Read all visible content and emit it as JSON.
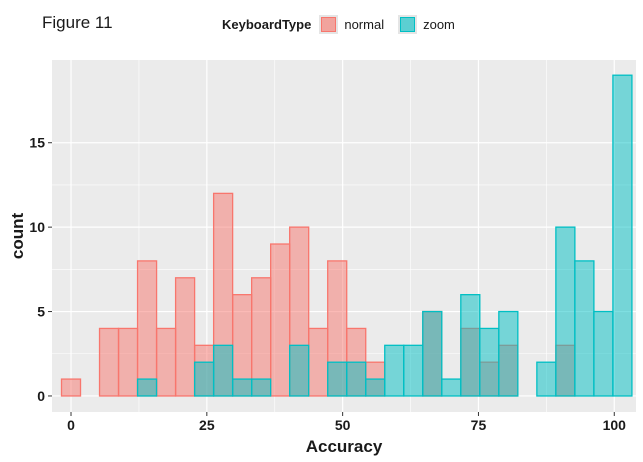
{
  "figure_label": "Figure 11",
  "legend": {
    "title": "KeyboardType",
    "entries": [
      {
        "label": "normal",
        "fill": "#F8766D",
        "stroke": "#F8766D"
      },
      {
        "label": "zoom",
        "fill": "#00BFC4",
        "stroke": "#00BFC4"
      }
    ]
  },
  "chart_data": {
    "type": "bar",
    "subtype": "histogram",
    "xlabel": "Accuracy",
    "ylabel": "count",
    "xlim": [
      -3.5,
      104
    ],
    "ylim": [
      -0.95,
      19.9
    ],
    "xticks": [
      0,
      25,
      50,
      75,
      100
    ],
    "yticks": [
      0,
      5,
      10,
      15
    ],
    "bin_width": 3.5,
    "bin_centers": [
      0,
      3.5,
      7,
      10.5,
      14,
      17.5,
      21,
      24.5,
      28,
      31.5,
      35,
      38.5,
      42,
      45.5,
      49,
      52.5,
      56,
      59.5,
      63,
      66.5,
      70,
      73.5,
      77,
      80.5,
      84,
      87.5,
      91,
      94.5,
      98,
      101.5
    ],
    "series": [
      {
        "name": "normal",
        "values": [
          1,
          0,
          4,
          4,
          8,
          4,
          7,
          3,
          12,
          6,
          7,
          9,
          10,
          4,
          8,
          4,
          2,
          0,
          0,
          5,
          0,
          4,
          2,
          3,
          0,
          0,
          3,
          0,
          0,
          0
        ]
      },
      {
        "name": "zoom",
        "values": [
          0,
          0,
          0,
          0,
          1,
          0,
          0,
          2,
          3,
          1,
          1,
          0,
          3,
          0,
          2,
          2,
          1,
          3,
          3,
          5,
          1,
          6,
          4,
          5,
          0,
          2,
          10,
          8,
          5,
          19
        ]
      }
    ],
    "colors": {
      "normal": "#F8766D",
      "zoom": "#00BFC4",
      "panel": "#EBEBEB",
      "grid": "#FFFFFF"
    },
    "grid": true,
    "legend_position": "top"
  }
}
